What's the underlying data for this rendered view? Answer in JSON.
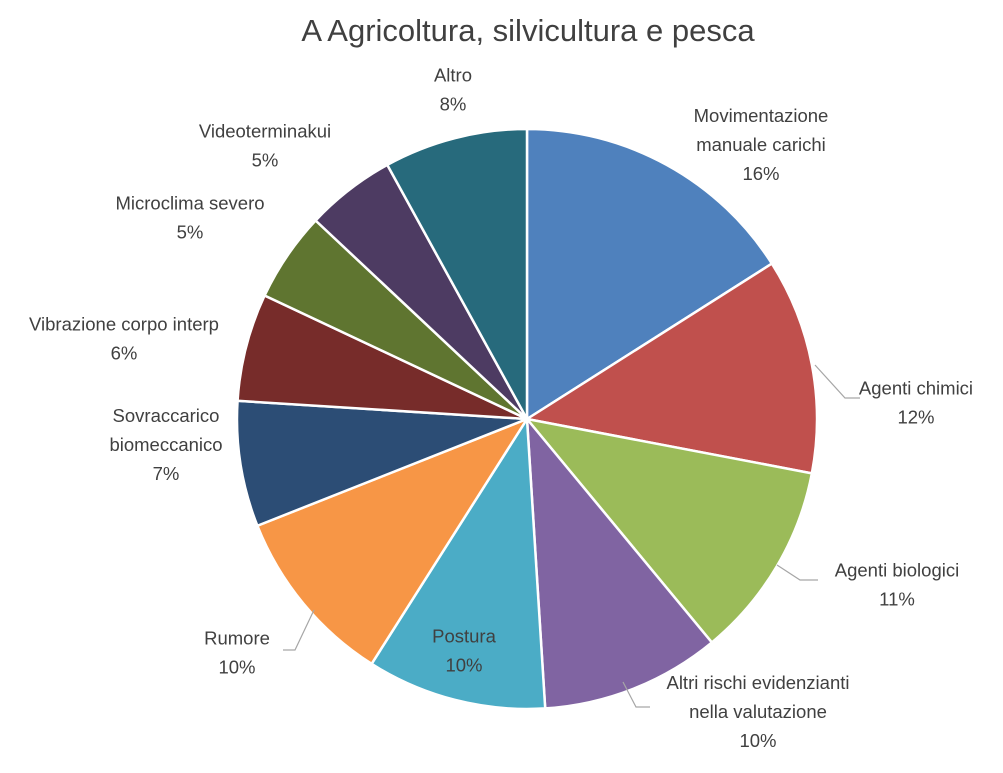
{
  "chart_data": {
    "type": "pie",
    "title": "A Agricoltura, silvicultura e pesca",
    "legend": "none",
    "slices": [
      {
        "label": [
          "Movimentazione",
          "manuale carichi"
        ],
        "value": 16,
        "display": "16%",
        "color": "#4F81BD"
      },
      {
        "label": [
          "Agenti chimici"
        ],
        "value": 12,
        "display": "12%",
        "color": "#C0504D"
      },
      {
        "label": [
          "Agenti biologici"
        ],
        "value": 11,
        "display": "11%",
        "color": "#9BBB59"
      },
      {
        "label": [
          "Altri rischi evidenzianti",
          "nella valutazione"
        ],
        "value": 10,
        "display": "10%",
        "color": "#8064A2"
      },
      {
        "label": [
          "Postura"
        ],
        "value": 10,
        "display": "10%",
        "color": "#4BACC6"
      },
      {
        "label": [
          "Rumore"
        ],
        "value": 10,
        "display": "10%",
        "color": "#F79646"
      },
      {
        "label": [
          "Sovraccarico",
          "biomeccanico"
        ],
        "value": 7,
        "display": "7%",
        "color": "#2C4D75"
      },
      {
        "label": [
          "Vibrazione corpo interp"
        ],
        "value": 6,
        "display": "6%",
        "color": "#772C2A"
      },
      {
        "label": [
          "Microclima severo"
        ],
        "value": 5,
        "display": "5%",
        "color": "#5F7530"
      },
      {
        "label": [
          "Videoterminakui"
        ],
        "value": 5,
        "display": "5%",
        "color": "#4D3B62"
      },
      {
        "label": [
          "Altro"
        ],
        "value": 8,
        "display": "8%",
        "color": "#276A7C"
      }
    ]
  }
}
